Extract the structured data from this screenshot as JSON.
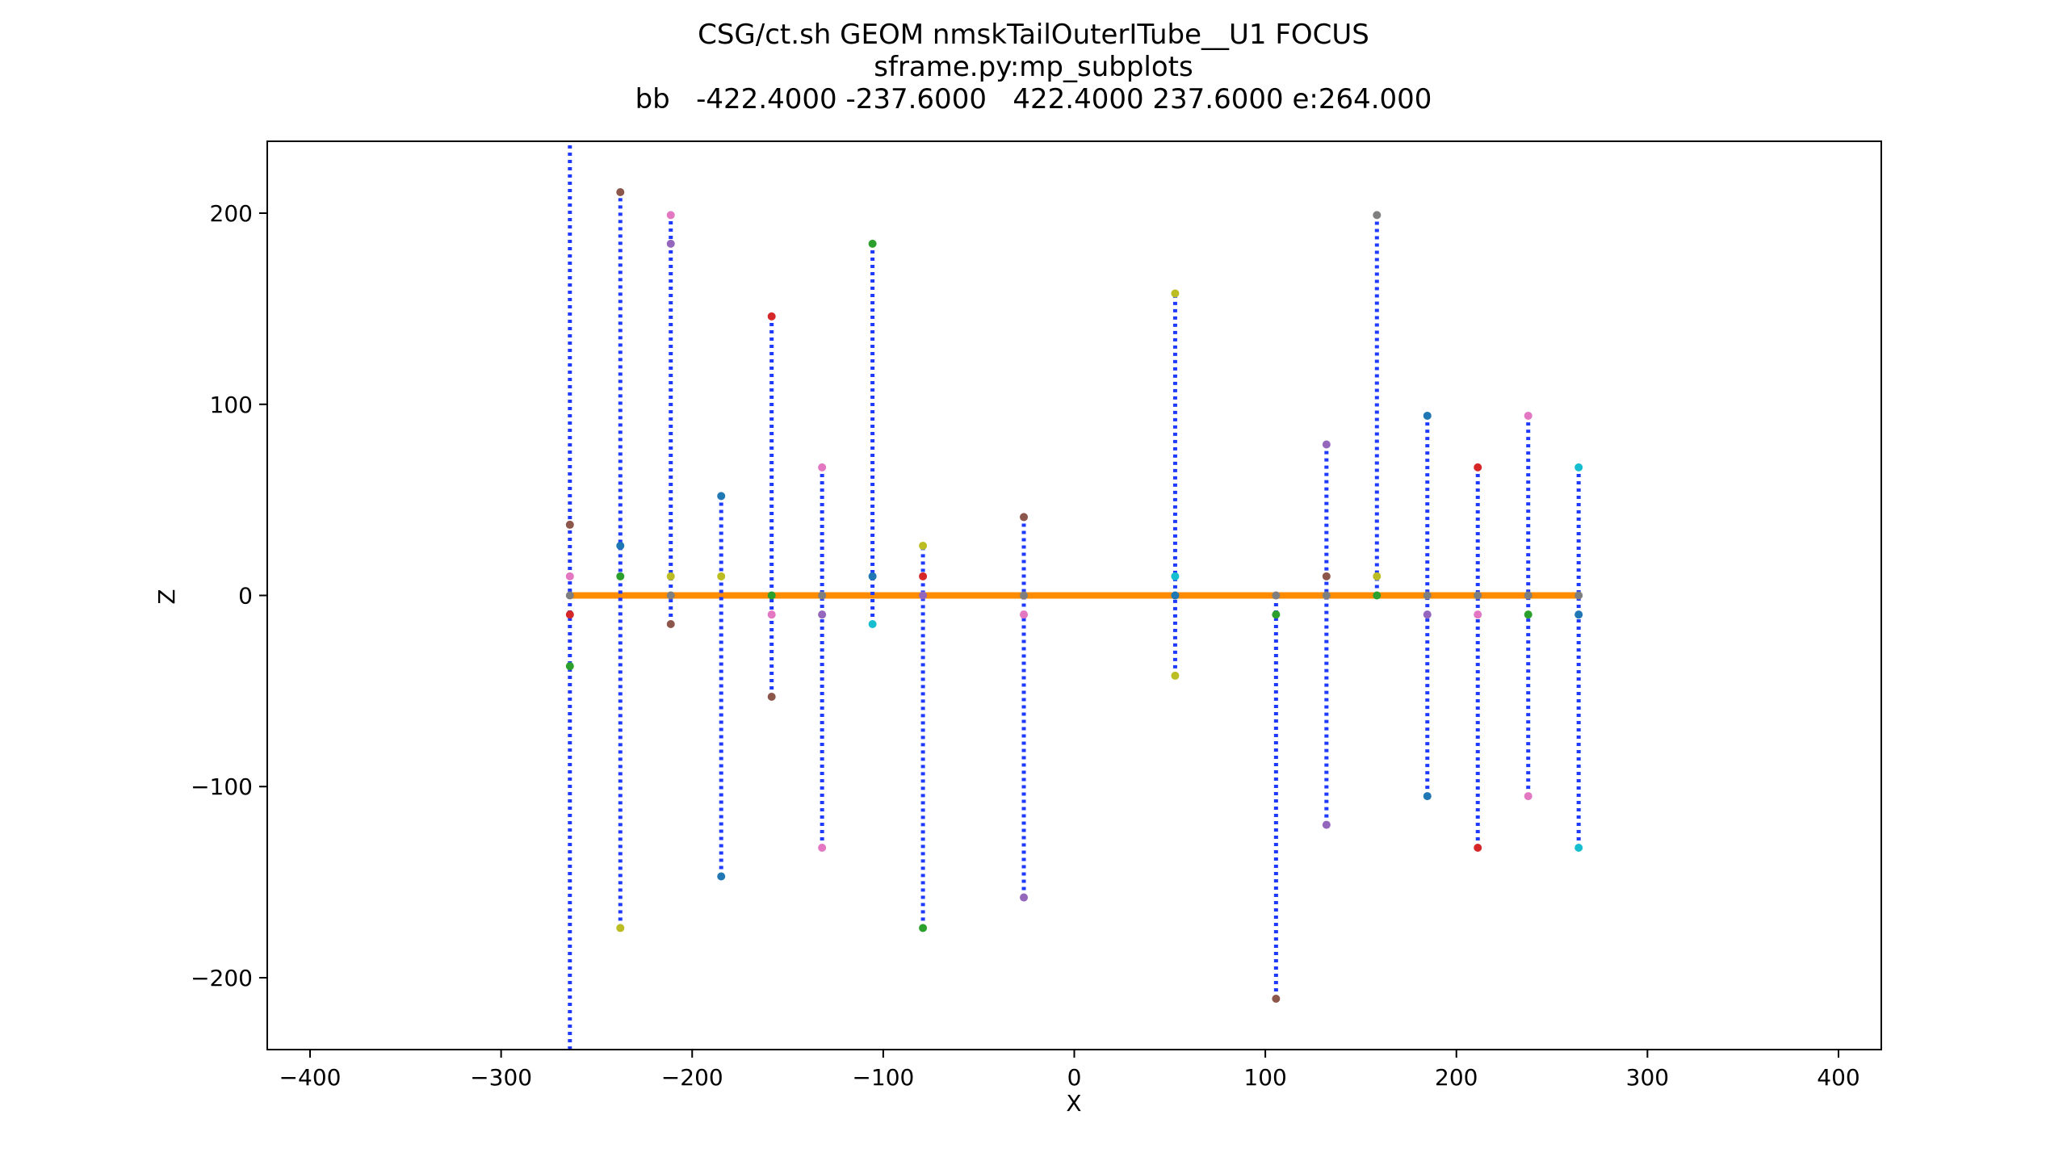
{
  "chart_data": {
    "type": "scatter",
    "title_lines": [
      "CSG/ct.sh GEOM nmskTailOuterITube__U1 FOCUS",
      "sframe.py:mp_subplots",
      "bb   -422.4000 -237.6000   422.4000 237.6000 e:264.000"
    ],
    "xlabel": "X",
    "ylabel": "Z",
    "xlim": [
      -422.4,
      422.4
    ],
    "ylim": [
      -237.6,
      237.6
    ],
    "xticks": [
      -400,
      -300,
      -200,
      -100,
      0,
      100,
      200,
      300,
      400
    ],
    "xtick_labels": [
      "−400",
      "−300",
      "−200",
      "−100",
      "0",
      "100",
      "200",
      "300",
      "400"
    ],
    "yticks": [
      -200,
      -100,
      0,
      100,
      200
    ],
    "ytick_labels": [
      "−200",
      "−100",
      "0",
      "100",
      "200"
    ],
    "grid": false,
    "colors": {
      "horizontal_line": "#ff8c00",
      "vertical_lines": "#1f3bff",
      "points": [
        "#d62728",
        "#1f77b4",
        "#2ca02c",
        "#bcbd22",
        "#9467bd",
        "#e377c2",
        "#17becf",
        "#8c564b",
        "#7f7f7f"
      ]
    },
    "horizontal_line": {
      "x": [
        -264,
        264
      ],
      "y": 0
    },
    "vertical_lines": [
      {
        "x": -264,
        "y": [
          -237.6,
          237.6
        ]
      },
      {
        "x": -237.6,
        "y": [
          -174,
          211
        ]
      },
      {
        "x": -211.2,
        "y": [
          -15,
          199
        ]
      },
      {
        "x": -184.8,
        "y": [
          -147,
          52
        ]
      },
      {
        "x": -158.4,
        "y": [
          -53,
          146
        ]
      },
      {
        "x": -132,
        "y": [
          -132,
          67
        ]
      },
      {
        "x": -105.6,
        "y": [
          -15,
          184
        ]
      },
      {
        "x": -79.2,
        "y": [
          -174,
          26
        ]
      },
      {
        "x": -26.4,
        "y": [
          -158,
          41
        ]
      },
      {
        "x": 52.8,
        "y": [
          -42,
          158
        ]
      },
      {
        "x": 105.6,
        "y": [
          -211,
          0
        ]
      },
      {
        "x": 132,
        "y": [
          -120,
          79
        ]
      },
      {
        "x": 158.4,
        "y": [
          0,
          199
        ]
      },
      {
        "x": 184.8,
        "y": [
          -105,
          94
        ]
      },
      {
        "x": 211.2,
        "y": [
          -132,
          67
        ]
      },
      {
        "x": 237.6,
        "y": [
          -105,
          94
        ]
      },
      {
        "x": 264,
        "y": [
          -132,
          67
        ]
      }
    ],
    "points": [
      {
        "x": -264,
        "y": 37,
        "c": 7
      },
      {
        "x": -264,
        "y": 10,
        "c": 5
      },
      {
        "x": -264,
        "y": 0,
        "c": 8
      },
      {
        "x": -264,
        "y": -10,
        "c": 0
      },
      {
        "x": -264,
        "y": -37,
        "c": 2
      },
      {
        "x": -237.6,
        "y": 211,
        "c": 7
      },
      {
        "x": -237.6,
        "y": 26,
        "c": 1
      },
      {
        "x": -237.6,
        "y": 10,
        "c": 2
      },
      {
        "x": -237.6,
        "y": -174,
        "c": 3
      },
      {
        "x": -211.2,
        "y": 199,
        "c": 5
      },
      {
        "x": -211.2,
        "y": 184,
        "c": 4
      },
      {
        "x": -211.2,
        "y": 10,
        "c": 3
      },
      {
        "x": -211.2,
        "y": 0,
        "c": 8
      },
      {
        "x": -211.2,
        "y": -15,
        "c": 7
      },
      {
        "x": -184.8,
        "y": 52,
        "c": 1
      },
      {
        "x": -184.8,
        "y": 10,
        "c": 3
      },
      {
        "x": -184.8,
        "y": -147,
        "c": 1
      },
      {
        "x": -158.4,
        "y": 146,
        "c": 0
      },
      {
        "x": -158.4,
        "y": 0,
        "c": 2
      },
      {
        "x": -158.4,
        "y": -10,
        "c": 5
      },
      {
        "x": -158.4,
        "y": -53,
        "c": 7
      },
      {
        "x": -132,
        "y": 67,
        "c": 5
      },
      {
        "x": -132,
        "y": 0,
        "c": 8
      },
      {
        "x": -132,
        "y": -10,
        "c": 4
      },
      {
        "x": -132,
        "y": -132,
        "c": 5
      },
      {
        "x": -105.6,
        "y": 184,
        "c": 2
      },
      {
        "x": -105.6,
        "y": 10,
        "c": 1
      },
      {
        "x": -105.6,
        "y": -15,
        "c": 6
      },
      {
        "x": -79.2,
        "y": 26,
        "c": 3
      },
      {
        "x": -79.2,
        "y": 10,
        "c": 0
      },
      {
        "x": -79.2,
        "y": 0,
        "c": 4
      },
      {
        "x": -79.2,
        "y": -174,
        "c": 2
      },
      {
        "x": -26.4,
        "y": 41,
        "c": 7
      },
      {
        "x": -26.4,
        "y": 0,
        "c": 8
      },
      {
        "x": -26.4,
        "y": -10,
        "c": 5
      },
      {
        "x": -26.4,
        "y": -158,
        "c": 4
      },
      {
        "x": 52.8,
        "y": 158,
        "c": 3
      },
      {
        "x": 52.8,
        "y": 10,
        "c": 6
      },
      {
        "x": 52.8,
        "y": 0,
        "c": 1
      },
      {
        "x": 52.8,
        "y": -42,
        "c": 3
      },
      {
        "x": 105.6,
        "y": 0,
        "c": 8
      },
      {
        "x": 105.6,
        "y": -10,
        "c": 2
      },
      {
        "x": 105.6,
        "y": -211,
        "c": 7
      },
      {
        "x": 132,
        "y": 79,
        "c": 4
      },
      {
        "x": 132,
        "y": 10,
        "c": 7
      },
      {
        "x": 132,
        "y": 0,
        "c": 8
      },
      {
        "x": 132,
        "y": -120,
        "c": 4
      },
      {
        "x": 158.4,
        "y": 199,
        "c": 8
      },
      {
        "x": 158.4,
        "y": 10,
        "c": 3
      },
      {
        "x": 158.4,
        "y": 0,
        "c": 2
      },
      {
        "x": 184.8,
        "y": 94,
        "c": 1
      },
      {
        "x": 184.8,
        "y": 0,
        "c": 8
      },
      {
        "x": 184.8,
        "y": -10,
        "c": 4
      },
      {
        "x": 184.8,
        "y": -105,
        "c": 1
      },
      {
        "x": 211.2,
        "y": 67,
        "c": 0
      },
      {
        "x": 211.2,
        "y": 0,
        "c": 8
      },
      {
        "x": 211.2,
        "y": -10,
        "c": 5
      },
      {
        "x": 211.2,
        "y": -132,
        "c": 0
      },
      {
        "x": 237.6,
        "y": 94,
        "c": 5
      },
      {
        "x": 237.6,
        "y": 0,
        "c": 8
      },
      {
        "x": 237.6,
        "y": -10,
        "c": 2
      },
      {
        "x": 237.6,
        "y": -105,
        "c": 5
      },
      {
        "x": 264,
        "y": 67,
        "c": 6
      },
      {
        "x": 264,
        "y": 0,
        "c": 8
      },
      {
        "x": 264,
        "y": -10,
        "c": 1
      },
      {
        "x": 264,
        "y": -132,
        "c": 6
      }
    ]
  }
}
